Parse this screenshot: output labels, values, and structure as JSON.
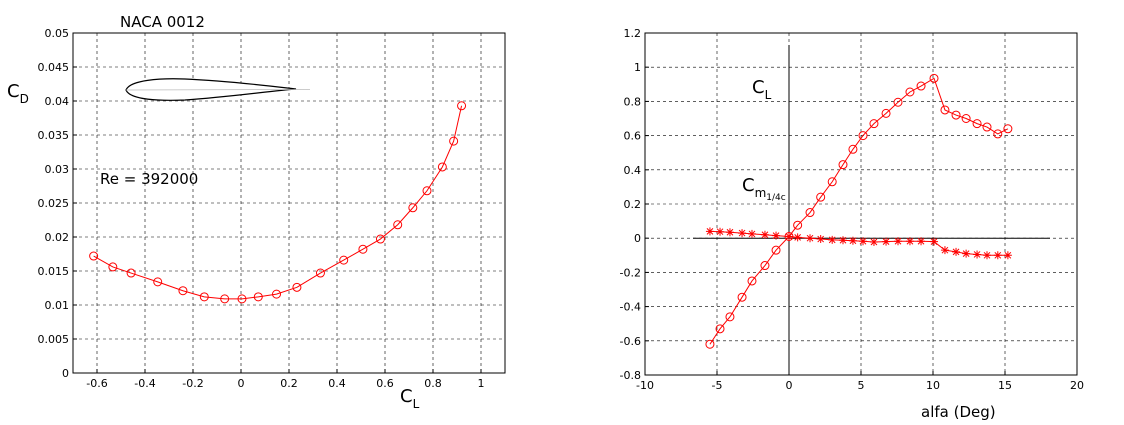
{
  "chart_data": [
    {
      "type": "line",
      "title": "NACA 0012",
      "annotations": [
        "Re = 392000"
      ],
      "xlabel": {
        "text": "C",
        "sub": "L"
      },
      "ylabel": {
        "text": "C",
        "sub": "D"
      },
      "x": [
        -0.614,
        -0.534,
        -0.458,
        -0.347,
        -0.242,
        -0.153,
        -0.068,
        0.004,
        0.072,
        0.148,
        0.233,
        0.331,
        0.428,
        0.508,
        0.581,
        0.653,
        0.716,
        0.775,
        0.839,
        0.886,
        0.919
      ],
      "series": [
        {
          "color": "#ff0000",
          "marker": "o",
          "values": [
            0.0172,
            0.0156,
            0.0147,
            0.0134,
            0.0121,
            0.0112,
            0.0109,
            0.0109,
            0.0112,
            0.0116,
            0.0126,
            0.0147,
            0.0166,
            0.0182,
            0.0197,
            0.0218,
            0.0243,
            0.0268,
            0.0303,
            0.0341,
            0.0393
          ]
        }
      ],
      "xlim": [
        -0.7,
        1.1
      ],
      "xticks": [
        -0.6,
        -0.4,
        -0.2,
        0,
        0.2,
        0.4,
        0.6,
        0.8,
        1
      ],
      "ylim": [
        0,
        0.05
      ],
      "yticks": [
        0,
        0.005,
        0.01,
        0.015,
        0.02,
        0.025,
        0.03,
        0.035,
        0.04,
        0.045,
        0.05
      ],
      "grid": true
    },
    {
      "type": "line",
      "xlabel": "alfa (Deg)",
      "labels": [
        {
          "text": "C",
          "sub": "L"
        },
        {
          "text": "C",
          "sub": "m",
          "subsub": "1/4c"
        }
      ],
      "x": [
        -5.49,
        -4.79,
        -4.1,
        -3.26,
        -2.57,
        -1.67,
        -0.9,
        0,
        0.6,
        1.46,
        2.2,
        3.0,
        3.75,
        4.44,
        5.14,
        5.9,
        6.74,
        7.57,
        8.4,
        9.17,
        10.07,
        10.83,
        11.6,
        12.3,
        13.06,
        13.75,
        14.5,
        15.2
      ],
      "series": [
        {
          "color": "#ff0000",
          "marker": "o",
          "values": [
            -0.62,
            -0.53,
            -0.46,
            -0.345,
            -0.25,
            -0.16,
            -0.07,
            0.01,
            0.076,
            0.15,
            0.24,
            0.33,
            0.43,
            0.52,
            0.6,
            0.67,
            0.73,
            0.795,
            0.855,
            0.89,
            0.935,
            0.75,
            0.72,
            0.7,
            0.67,
            0.65,
            0.61,
            0.64
          ]
        },
        {
          "color": "#ff0000",
          "marker": "*",
          "values": [
            0.04,
            0.038,
            0.035,
            0.03,
            0.025,
            0.02,
            0.015,
            0.01,
            0.005,
            0,
            -0.005,
            -0.01,
            -0.012,
            -0.015,
            -0.018,
            -0.022,
            -0.02,
            -0.018,
            -0.018,
            -0.018,
            -0.02,
            -0.07,
            -0.08,
            -0.09,
            -0.095,
            -0.1,
            -0.1,
            -0.1
          ]
        }
      ],
      "xlim": [
        -10,
        20
      ],
      "xticks": [
        -10,
        -5,
        0,
        5,
        10,
        15,
        20
      ],
      "ylim": [
        -0.8,
        1.2
      ],
      "yticks": [
        -0.8,
        -0.6,
        -0.4,
        -0.2,
        0,
        0.2,
        0.4,
        0.6,
        0.8,
        1,
        1.2
      ],
      "grid": true
    }
  ]
}
